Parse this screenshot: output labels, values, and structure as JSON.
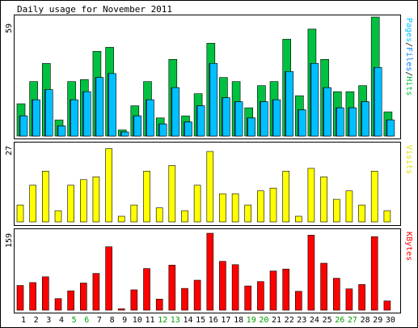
{
  "chart_data": [
    {
      "type": "bar",
      "title": "Daily usage for November 2011",
      "categories": [
        "1",
        "2",
        "3",
        "4",
        "5",
        "6",
        "7",
        "8",
        "9",
        "10",
        "11",
        "12",
        "13",
        "14",
        "15",
        "16",
        "17",
        "18",
        "19",
        "20",
        "21",
        "22",
        "23",
        "24",
        "25",
        "26",
        "27",
        "28",
        "29",
        "30"
      ],
      "weekend_days": [
        "5",
        "6",
        "12",
        "13",
        "19",
        "20",
        "26",
        "27"
      ],
      "ymax_label": "59",
      "ylim": [
        0,
        59
      ],
      "side_label_parts": [
        "Pages",
        "Files",
        "Hits"
      ],
      "series": [
        {
          "name": "Hits",
          "color": "#00c040",
          "values": [
            16,
            27,
            36,
            8,
            27,
            28,
            42,
            44,
            3,
            15,
            27,
            9,
            38,
            10,
            21,
            46,
            29,
            27,
            14,
            25,
            27,
            48,
            20,
            53,
            38,
            22,
            22,
            25,
            59,
            12
          ]
        },
        {
          "name": "Files",
          "color": "#0080ff",
          "values": [
            10,
            18,
            23,
            5,
            18,
            22,
            29,
            31,
            2,
            10,
            18,
            6,
            24,
            7,
            15,
            36,
            19,
            17,
            9,
            17,
            18,
            32,
            13,
            36,
            24,
            14,
            14,
            17,
            34,
            8
          ]
        },
        {
          "name": "Pages",
          "color": "#00c0ff",
          "values": [
            10,
            18,
            23,
            5,
            18,
            22,
            29,
            31,
            2,
            10,
            18,
            6,
            24,
            7,
            15,
            36,
            19,
            17,
            9,
            17,
            18,
            32,
            13,
            36,
            24,
            14,
            14,
            17,
            34,
            8
          ]
        }
      ]
    },
    {
      "type": "bar",
      "ymax_label": "27",
      "ylim": [
        0,
        27
      ],
      "side_label": "Visits",
      "series": [
        {
          "name": "Visits",
          "color": "#ffff00",
          "values": [
            6,
            13,
            18,
            4,
            13,
            15,
            16,
            26,
            2,
            6,
            18,
            5,
            20,
            4,
            13,
            25,
            10,
            10,
            6,
            11,
            12,
            18,
            2,
            19,
            16,
            8,
            11,
            6,
            18,
            4
          ]
        }
      ]
    },
    {
      "type": "bar",
      "ymax_label": "159",
      "ylim": [
        0,
        159
      ],
      "side_label": "KBytes",
      "series": [
        {
          "name": "KBytes",
          "color": "#ff0000",
          "values": [
            51,
            57,
            69,
            24,
            40,
            56,
            76,
            131,
            3,
            42,
            86,
            23,
            93,
            45,
            62,
            159,
            101,
            94,
            50,
            59,
            81,
            85,
            39,
            155,
            97,
            66,
            44,
            53,
            152,
            19
          ]
        }
      ]
    }
  ]
}
